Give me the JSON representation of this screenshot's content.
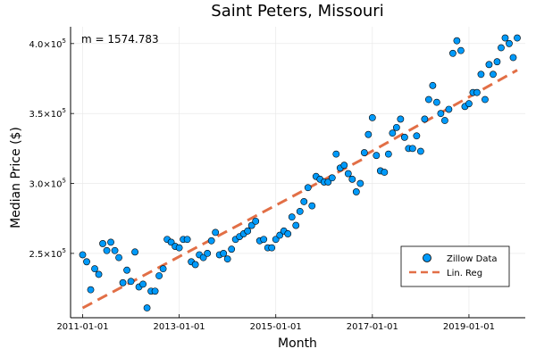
{
  "chart_data": {
    "type": "scatter",
    "title": "Saint Peters, Missouri",
    "xlabel": "Month",
    "ylabel": "Median Price ($)",
    "annotation": "m = 1574.783",
    "xlim": [
      "2010-10-01",
      "2020-03-01"
    ],
    "ylim": [
      204000,
      412000
    ],
    "x_ticks": [
      "2011-01-01",
      "2013-01-01",
      "2015-01-01",
      "2017-01-01",
      "2019-01-01"
    ],
    "y_ticks": [
      {
        "value": 250000,
        "mantissa": "2.5",
        "exp": "5"
      },
      {
        "value": 300000,
        "mantissa": "3.0",
        "exp": "5"
      },
      {
        "value": 350000,
        "mantissa": "3.5",
        "exp": "5"
      },
      {
        "value": 400000,
        "mantissa": "4.0",
        "exp": "5"
      }
    ],
    "grid": true,
    "legend_position": "bottom-right",
    "series": [
      {
        "name": "Zillow Data",
        "kind": "scatter",
        "color": "#009AFA",
        "points": [
          {
            "x": "2011-01",
            "y": 249000
          },
          {
            "x": "2011-02",
            "y": 244000
          },
          {
            "x": "2011-03",
            "y": 224000
          },
          {
            "x": "2011-04",
            "y": 239000
          },
          {
            "x": "2011-05",
            "y": 235000
          },
          {
            "x": "2011-06",
            "y": 257000
          },
          {
            "x": "2011-07",
            "y": 252000
          },
          {
            "x": "2011-08",
            "y": 258000
          },
          {
            "x": "2011-09",
            "y": 252000
          },
          {
            "x": "2011-10",
            "y": 247000
          },
          {
            "x": "2011-11",
            "y": 229000
          },
          {
            "x": "2011-12",
            "y": 238000
          },
          {
            "x": "2012-01",
            "y": 230000
          },
          {
            "x": "2012-02",
            "y": 251000
          },
          {
            "x": "2012-03",
            "y": 226000
          },
          {
            "x": "2012-04",
            "y": 228000
          },
          {
            "x": "2012-05",
            "y": 211000
          },
          {
            "x": "2012-06",
            "y": 223000
          },
          {
            "x": "2012-07",
            "y": 223000
          },
          {
            "x": "2012-08",
            "y": 234000
          },
          {
            "x": "2012-09",
            "y": 239000
          },
          {
            "x": "2012-10",
            "y": 260000
          },
          {
            "x": "2012-11",
            "y": 258000
          },
          {
            "x": "2012-12",
            "y": 255000
          },
          {
            "x": "2013-01",
            "y": 254000
          },
          {
            "x": "2013-02",
            "y": 260000
          },
          {
            "x": "2013-03",
            "y": 260000
          },
          {
            "x": "2013-04",
            "y": 244000
          },
          {
            "x": "2013-05",
            "y": 242000
          },
          {
            "x": "2013-06",
            "y": 249000
          },
          {
            "x": "2013-07",
            "y": 247000
          },
          {
            "x": "2013-08",
            "y": 250000
          },
          {
            "x": "2013-09",
            "y": 259000
          },
          {
            "x": "2013-10",
            "y": 265000
          },
          {
            "x": "2013-11",
            "y": 249000
          },
          {
            "x": "2013-12",
            "y": 250000
          },
          {
            "x": "2014-01",
            "y": 246000
          },
          {
            "x": "2014-02",
            "y": 253000
          },
          {
            "x": "2014-03",
            "y": 260000
          },
          {
            "x": "2014-04",
            "y": 262000
          },
          {
            "x": "2014-05",
            "y": 264000
          },
          {
            "x": "2014-06",
            "y": 266000
          },
          {
            "x": "2014-07",
            "y": 270000
          },
          {
            "x": "2014-08",
            "y": 273000
          },
          {
            "x": "2014-09",
            "y": 259000
          },
          {
            "x": "2014-10",
            "y": 260000
          },
          {
            "x": "2014-11",
            "y": 254000
          },
          {
            "x": "2014-12",
            "y": 254000
          },
          {
            "x": "2015-01",
            "y": 260000
          },
          {
            "x": "2015-02",
            "y": 263000
          },
          {
            "x": "2015-03",
            "y": 266000
          },
          {
            "x": "2015-04",
            "y": 264000
          },
          {
            "x": "2015-05",
            "y": 276000
          },
          {
            "x": "2015-06",
            "y": 270000
          },
          {
            "x": "2015-07",
            "y": 280000
          },
          {
            "x": "2015-08",
            "y": 287000
          },
          {
            "x": "2015-09",
            "y": 297000
          },
          {
            "x": "2015-10",
            "y": 284000
          },
          {
            "x": "2015-11",
            "y": 305000
          },
          {
            "x": "2015-12",
            "y": 303000
          },
          {
            "x": "2016-01",
            "y": 301000
          },
          {
            "x": "2016-02",
            "y": 301000
          },
          {
            "x": "2016-03",
            "y": 304000
          },
          {
            "x": "2016-04",
            "y": 321000
          },
          {
            "x": "2016-05",
            "y": 311000
          },
          {
            "x": "2016-06",
            "y": 313000
          },
          {
            "x": "2016-07",
            "y": 307000
          },
          {
            "x": "2016-08",
            "y": 303000
          },
          {
            "x": "2016-09",
            "y": 294000
          },
          {
            "x": "2016-10",
            "y": 300000
          },
          {
            "x": "2016-11",
            "y": 322000
          },
          {
            "x": "2016-12",
            "y": 335000
          },
          {
            "x": "2017-01",
            "y": 347000
          },
          {
            "x": "2017-02",
            "y": 320000
          },
          {
            "x": "2017-03",
            "y": 309000
          },
          {
            "x": "2017-04",
            "y": 308000
          },
          {
            "x": "2017-05",
            "y": 321000
          },
          {
            "x": "2017-06",
            "y": 336000
          },
          {
            "x": "2017-07",
            "y": 340000
          },
          {
            "x": "2017-08",
            "y": 346000
          },
          {
            "x": "2017-09",
            "y": 333000
          },
          {
            "x": "2017-10",
            "y": 325000
          },
          {
            "x": "2017-11",
            "y": 325000
          },
          {
            "x": "2017-12",
            "y": 334000
          },
          {
            "x": "2018-01",
            "y": 323000
          },
          {
            "x": "2018-02",
            "y": 346000
          },
          {
            "x": "2018-03",
            "y": 360000
          },
          {
            "x": "2018-04",
            "y": 370000
          },
          {
            "x": "2018-05",
            "y": 358000
          },
          {
            "x": "2018-06",
            "y": 350000
          },
          {
            "x": "2018-07",
            "y": 345000
          },
          {
            "x": "2018-08",
            "y": 353000
          },
          {
            "x": "2018-09",
            "y": 393000
          },
          {
            "x": "2018-10",
            "y": 402000
          },
          {
            "x": "2018-11",
            "y": 395000
          },
          {
            "x": "2018-12",
            "y": 355000
          },
          {
            "x": "2019-01",
            "y": 357000
          },
          {
            "x": "2019-02",
            "y": 365000
          },
          {
            "x": "2019-03",
            "y": 365000
          },
          {
            "x": "2019-04",
            "y": 378000
          },
          {
            "x": "2019-05",
            "y": 360000
          },
          {
            "x": "2019-06",
            "y": 385000
          },
          {
            "x": "2019-07",
            "y": 378000
          },
          {
            "x": "2019-08",
            "y": 387000
          },
          {
            "x": "2019-09",
            "y": 397000
          },
          {
            "x": "2019-10",
            "y": 404000
          },
          {
            "x": "2019-11",
            "y": 400000
          },
          {
            "x": "2019-12",
            "y": 390000
          },
          {
            "x": "2020-01",
            "y": 404000
          }
        ]
      },
      {
        "name": "Lin. Reg",
        "kind": "line",
        "style": "dashed",
        "color": "#E26F46",
        "segments": [
          [
            {
              "x": "2011-01",
              "y": 211000
            },
            {
              "x": "2016-11",
              "y": 318000
            }
          ],
          [
            {
              "x": "2016-11",
              "y": 320000
            },
            {
              "x": "2020-01",
              "y": 381000
            }
          ]
        ]
      }
    ]
  }
}
